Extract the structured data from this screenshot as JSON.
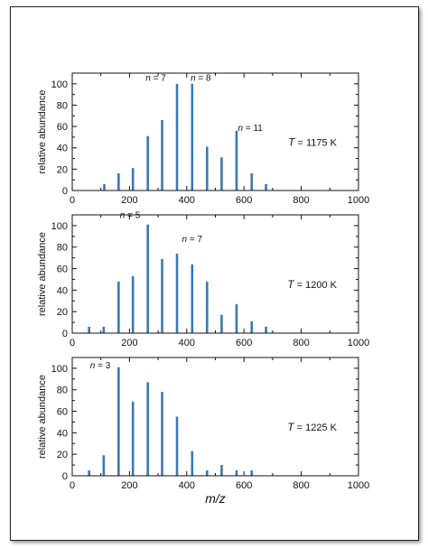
{
  "chart_data": [
    {
      "type": "bar",
      "panel": "top",
      "xlabel": "",
      "ylabel": "relative abundance",
      "xlim": [
        0,
        1000
      ],
      "ylim": [
        0,
        110
      ],
      "xticks": [
        0,
        200,
        400,
        600,
        800,
        1000
      ],
      "yticks": [
        0,
        20,
        40,
        60,
        80,
        100
      ],
      "bar_color": "#3a78b4",
      "points": [
        {
          "x": 112,
          "y": 6
        },
        {
          "x": 162,
          "y": 16
        },
        {
          "x": 212,
          "y": 21
        },
        {
          "x": 264,
          "y": 51
        },
        {
          "x": 314,
          "y": 66
        },
        {
          "x": 366,
          "y": 100
        },
        {
          "x": 419,
          "y": 100
        },
        {
          "x": 471,
          "y": 41
        },
        {
          "x": 522,
          "y": 31
        },
        {
          "x": 574,
          "y": 56
        },
        {
          "x": 627,
          "y": 16
        },
        {
          "x": 677,
          "y": 6
        }
      ],
      "annotations": [
        {
          "text": "n = 7",
          "x": 292,
          "y": 103
        },
        {
          "text": "n = 8",
          "x": 449,
          "y": 103
        },
        {
          "text": "n = 11",
          "x": 622,
          "y": 56
        }
      ],
      "temperature_label": "T = 1175 K"
    },
    {
      "type": "bar",
      "panel": "middle",
      "xlabel": "",
      "ylabel": "relative abundance",
      "xlim": [
        0,
        1000
      ],
      "ylim": [
        0,
        110
      ],
      "xticks": [
        0,
        200,
        400,
        600,
        800,
        1000
      ],
      "yticks": [
        0,
        20,
        40,
        60,
        80,
        100
      ],
      "bar_color": "#3a78b4",
      "points": [
        {
          "x": 59,
          "y": 6
        },
        {
          "x": 110,
          "y": 6
        },
        {
          "x": 162,
          "y": 48
        },
        {
          "x": 212,
          "y": 53
        },
        {
          "x": 264,
          "y": 101
        },
        {
          "x": 314,
          "y": 69
        },
        {
          "x": 366,
          "y": 74
        },
        {
          "x": 419,
          "y": 64
        },
        {
          "x": 471,
          "y": 48
        },
        {
          "x": 522,
          "y": 17
        },
        {
          "x": 574,
          "y": 27
        },
        {
          "x": 627,
          "y": 11
        },
        {
          "x": 677,
          "y": 6
        }
      ],
      "annotations": [
        {
          "text": "n = 5",
          "x": 202,
          "y": 107
        },
        {
          "text": "n = 7",
          "x": 419,
          "y": 85
        }
      ],
      "temperature_label": "T = 1200 K"
    },
    {
      "type": "bar",
      "panel": "bottom",
      "xlabel": "m/z",
      "ylabel": "relative abundance",
      "xlim": [
        0,
        1000
      ],
      "ylim": [
        0,
        110
      ],
      "xticks": [
        0,
        200,
        400,
        600,
        800,
        1000
      ],
      "yticks": [
        0,
        20,
        40,
        60,
        80,
        100
      ],
      "bar_color": "#3a78b4",
      "points": [
        {
          "x": 59,
          "y": 5
        },
        {
          "x": 110,
          "y": 19
        },
        {
          "x": 162,
          "y": 101
        },
        {
          "x": 212,
          "y": 69
        },
        {
          "x": 264,
          "y": 87
        },
        {
          "x": 314,
          "y": 78
        },
        {
          "x": 366,
          "y": 55
        },
        {
          "x": 419,
          "y": 23
        },
        {
          "x": 471,
          "y": 5
        },
        {
          "x": 522,
          "y": 10
        },
        {
          "x": 574,
          "y": 5
        },
        {
          "x": 627,
          "y": 5
        }
      ],
      "annotations": [
        {
          "text": "n = 3",
          "x": 98,
          "y": 100
        }
      ],
      "temperature_label": "T = 1225 K"
    }
  ]
}
